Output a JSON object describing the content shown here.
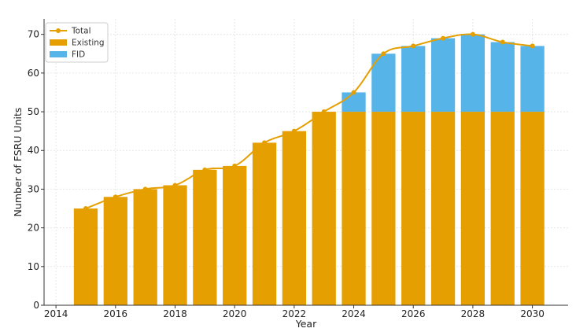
{
  "chart_data": {
    "type": "bar",
    "xlabel": "Year",
    "ylabel": "Number of FSRU Units",
    "xlim": [
      2013.6,
      2031.2
    ],
    "ylim": [
      0,
      74
    ],
    "x_ticks": [
      2014,
      2016,
      2018,
      2020,
      2022,
      2024,
      2026,
      2028,
      2030
    ],
    "y_ticks": [
      0,
      10,
      20,
      30,
      40,
      50,
      60,
      70
    ],
    "grid": true,
    "legend_position": "top-left",
    "stacked": true,
    "categories": [
      2015,
      2016,
      2017,
      2018,
      2019,
      2020,
      2021,
      2022,
      2023,
      2024,
      2025,
      2026,
      2027,
      2028,
      2029,
      2030
    ],
    "series": [
      {
        "name": "Existing",
        "kind": "bar",
        "color": "#E69F00",
        "values": [
          25,
          28,
          30,
          31,
          35,
          36,
          42,
          45,
          50,
          50,
          50,
          50,
          50,
          50,
          50,
          50
        ]
      },
      {
        "name": "FID",
        "kind": "bar",
        "color": "#56B4E9",
        "values": [
          0,
          0,
          0,
          0,
          0,
          0,
          0,
          0,
          0,
          5,
          15,
          17,
          19,
          20,
          18,
          17
        ]
      },
      {
        "name": "Total",
        "kind": "line",
        "color": "#E69F00",
        "values": [
          25,
          28,
          30,
          31,
          35,
          36,
          42,
          45,
          50,
          55,
          65,
          67,
          69,
          70,
          68,
          67
        ]
      }
    ]
  }
}
